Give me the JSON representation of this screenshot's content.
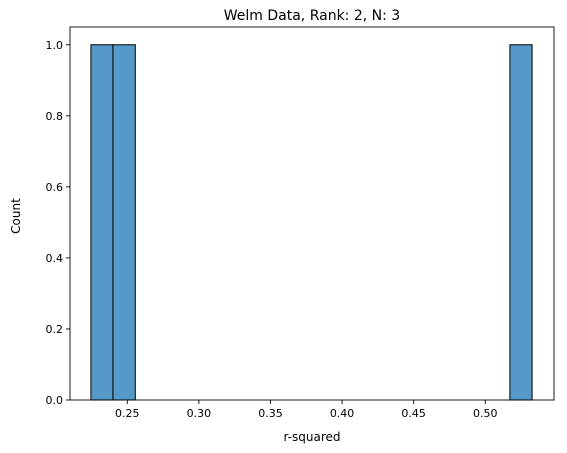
{
  "chart_data": {
    "type": "bar",
    "title": "Welm Data, Rank: 2, N: 3",
    "xlabel": "r-squared",
    "ylabel": "Count",
    "xlim": [
      0.21,
      0.548
    ],
    "ylim": [
      0,
      1.05
    ],
    "xticks": [
      "0.25",
      "0.30",
      "0.35",
      "0.40",
      "0.45",
      "0.50"
    ],
    "yticks": [
      "0.0",
      "0.2",
      "0.4",
      "0.6",
      "0.8",
      "1.0"
    ],
    "bins": [
      {
        "x0": 0.2246,
        "x1": 0.24,
        "count": 1
      },
      {
        "x0": 0.24,
        "x1": 0.2556,
        "count": 1
      },
      {
        "x0": 0.5172,
        "x1": 0.5327,
        "count": 1
      }
    ],
    "grid": false,
    "bar_color": "#5499c7",
    "edge_color": "#000000"
  }
}
